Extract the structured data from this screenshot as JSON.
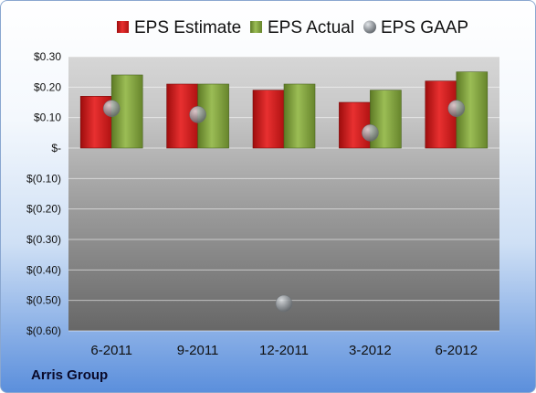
{
  "chart_data": {
    "type": "bar",
    "categories": [
      "6-2011",
      "9-2011",
      "12-2011",
      "3-2012",
      "6-2012"
    ],
    "series": [
      {
        "name": "EPS Estimate",
        "type": "bar",
        "color": "#d11c1c",
        "values": [
          0.17,
          0.21,
          0.19,
          0.15,
          0.22
        ]
      },
      {
        "name": "EPS Actual",
        "type": "bar",
        "color": "#7fa13a",
        "values": [
          0.24,
          0.21,
          0.21,
          0.19,
          0.25
        ]
      },
      {
        "name": "EPS GAAP",
        "type": "scatter",
        "color": "#9aa0a6",
        "values": [
          0.13,
          0.11,
          -0.51,
          0.05,
          0.13
        ]
      }
    ],
    "ylim": [
      -0.6,
      0.3
    ],
    "yticks": [
      0.3,
      0.2,
      0.1,
      0.0,
      -0.1,
      -0.2,
      -0.3,
      -0.4,
      -0.5,
      -0.6
    ],
    "ytick_labels": [
      "$0.30",
      "$0.20",
      "$0.10",
      "$-",
      "$(0.10)",
      "$(0.20)",
      "$(0.30)",
      "$(0.40)",
      "$(0.50)",
      "$(0.60)"
    ],
    "grid": true,
    "legend": "top"
  },
  "footer": {
    "company": "Arris Group"
  }
}
